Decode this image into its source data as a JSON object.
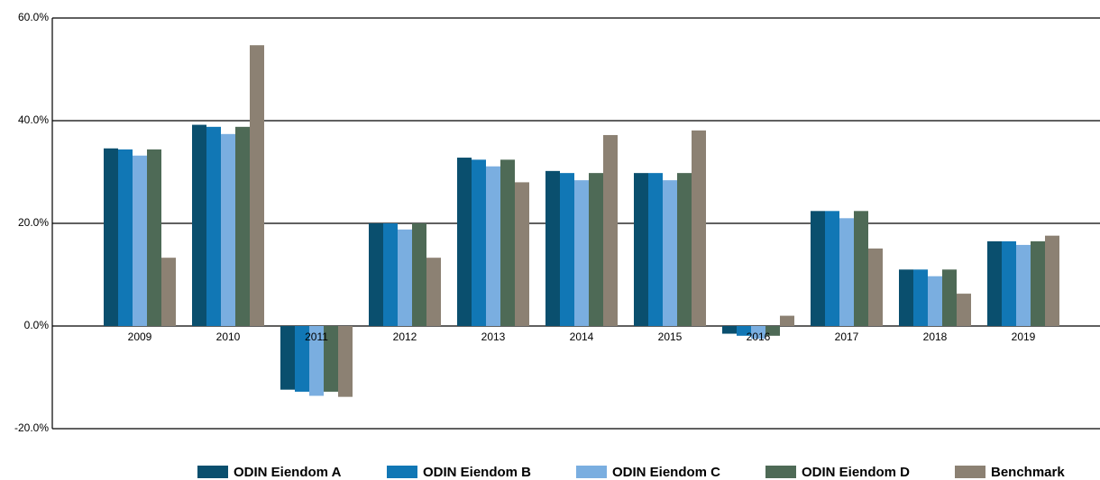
{
  "chart_data": {
    "type": "bar",
    "categories": [
      "2009",
      "2010",
      "2011",
      "2012",
      "2013",
      "2014",
      "2015",
      "2016",
      "2017",
      "2018",
      "2019"
    ],
    "series": [
      {
        "name": "ODIN Eiendom A",
        "color": "#0a4f6e",
        "values": [
          34.6,
          39.2,
          -12.4,
          20.0,
          32.8,
          30.2,
          29.8,
          -1.5,
          22.4,
          11.0,
          16.5
        ]
      },
      {
        "name": "ODIN Eiendom B",
        "color": "#1177b5",
        "values": [
          34.4,
          38.8,
          -12.8,
          20.0,
          32.4,
          29.8,
          29.8,
          -1.9,
          22.4,
          11.0,
          16.5
        ]
      },
      {
        "name": "ODIN Eiendom C",
        "color": "#7aaee0",
        "values": [
          33.2,
          37.4,
          -13.6,
          18.8,
          31.1,
          28.4,
          28.4,
          -2.5,
          21.0,
          9.7,
          15.8
        ]
      },
      {
        "name": "ODIN Eiendom D",
        "color": "#4e6a56",
        "values": [
          34.4,
          38.8,
          -12.8,
          20.0,
          32.4,
          29.8,
          29.8,
          -1.9,
          22.4,
          11.0,
          16.5
        ]
      },
      {
        "name": "Benchmark",
        "color": "#8c8173",
        "values": [
          13.3,
          54.7,
          -13.8,
          13.3,
          28.0,
          37.2,
          38.1,
          2.0,
          15.1,
          6.3,
          17.6
        ]
      }
    ],
    "ylim": [
      -20,
      60
    ],
    "yticks": [
      {
        "value": -20,
        "label": "-20.0%"
      },
      {
        "value": 0,
        "label": "0.0%"
      },
      {
        "value": 20,
        "label": "20.0%"
      },
      {
        "value": 40,
        "label": "40.0%"
      },
      {
        "value": 60,
        "label": "60.0%"
      }
    ],
    "grid": true,
    "legend": "bottom"
  }
}
